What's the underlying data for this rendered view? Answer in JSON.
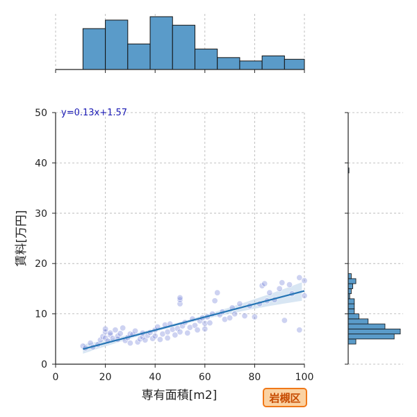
{
  "chart_data": {
    "type": "scatter",
    "xlabel": "専有面積[m2]",
    "ylabel": "賃料[万円]",
    "xlim": [
      0,
      100
    ],
    "ylim": [
      0,
      50
    ],
    "x_ticks": [
      "0",
      "20",
      "40",
      "60",
      "80",
      "100"
    ],
    "y_ticks": [
      "0",
      "10",
      "20",
      "30",
      "40",
      "50"
    ],
    "grid": true,
    "regression": {
      "equation": "y=0.13x+1.57",
      "slope": 0.13,
      "intercept": 1.57,
      "x_range": [
        11,
        100
      ]
    },
    "badge": "岩槻区",
    "colors": {
      "hist": "#5a9bc9",
      "line": "#2474b4",
      "points": "#6f7fd6",
      "equation": "#1a1ab4",
      "badge_bg": "#fbd2a2",
      "badge_border": "#f07818",
      "badge_text": "#c64a00"
    },
    "points": [
      [
        11,
        3.6
      ],
      [
        12,
        3.2
      ],
      [
        14,
        4.2
      ],
      [
        15,
        3.4
      ],
      [
        17,
        3.9
      ],
      [
        18,
        4.8
      ],
      [
        19,
        5.5
      ],
      [
        20,
        5.2
      ],
      [
        20,
        6.4
      ],
      [
        20,
        7.0
      ],
      [
        21,
        4.6
      ],
      [
        22,
        5.8
      ],
      [
        22,
        6.2
      ],
      [
        23,
        5.1
      ],
      [
        24,
        6.8
      ],
      [
        25,
        4.9
      ],
      [
        25,
        5.6
      ],
      [
        26,
        6.1
      ],
      [
        27,
        7.2
      ],
      [
        28,
        4.7
      ],
      [
        29,
        5.3
      ],
      [
        30,
        6.0
      ],
      [
        30,
        4.2
      ],
      [
        31,
        5.9
      ],
      [
        32,
        6.6
      ],
      [
        33,
        4.4
      ],
      [
        34,
        5.0
      ],
      [
        35,
        5.4
      ],
      [
        35,
        6.2
      ],
      [
        36,
        4.8
      ],
      [
        37,
        5.7
      ],
      [
        38,
        6.3
      ],
      [
        39,
        5.1
      ],
      [
        40,
        5.6
      ],
      [
        40,
        6.8
      ],
      [
        41,
        7.4
      ],
      [
        42,
        4.9
      ],
      [
        43,
        6.0
      ],
      [
        44,
        7.8
      ],
      [
        45,
        6.4
      ],
      [
        45,
        5.2
      ],
      [
        46,
        8.0
      ],
      [
        47,
        6.9
      ],
      [
        48,
        5.8
      ],
      [
        49,
        7.1
      ],
      [
        50,
        12.0
      ],
      [
        50,
        12.8
      ],
      [
        50,
        13.2
      ],
      [
        50,
        6.4
      ],
      [
        51,
        7.6
      ],
      [
        52,
        8.3
      ],
      [
        53,
        6.2
      ],
      [
        54,
        7.3
      ],
      [
        55,
        9.0
      ],
      [
        56,
        7.7
      ],
      [
        57,
        6.8
      ],
      [
        58,
        8.6
      ],
      [
        59,
        9.2
      ],
      [
        60,
        8.1
      ],
      [
        60,
        7.0
      ],
      [
        61,
        9.4
      ],
      [
        62,
        8.2
      ],
      [
        63,
        10.0
      ],
      [
        64,
        12.6
      ],
      [
        65,
        14.2
      ],
      [
        66,
        9.8
      ],
      [
        67,
        10.4
      ],
      [
        68,
        8.9
      ],
      [
        70,
        9.2
      ],
      [
        71,
        11.2
      ],
      [
        72,
        10.0
      ],
      [
        74,
        12.0
      ],
      [
        76,
        9.6
      ],
      [
        78,
        11.6
      ],
      [
        80,
        9.4
      ],
      [
        82,
        12.0
      ],
      [
        83,
        15.6
      ],
      [
        84,
        16.0
      ],
      [
        85,
        12.6
      ],
      [
        86,
        14.2
      ],
      [
        88,
        12.8
      ],
      [
        90,
        15.0
      ],
      [
        91,
        16.2
      ],
      [
        92,
        8.7
      ],
      [
        94,
        15.8
      ],
      [
        95,
        14.0
      ],
      [
        98,
        6.8
      ],
      [
        98,
        17.2
      ],
      [
        100,
        16.6
      ],
      [
        100,
        13.6
      ]
    ],
    "top_histogram": {
      "bins": [
        [
          0,
          11
        ],
        [
          11,
          20
        ],
        [
          20,
          29
        ],
        [
          29,
          38
        ],
        [
          38,
          47
        ],
        [
          47,
          56
        ],
        [
          56,
          65
        ],
        [
          65,
          74
        ],
        [
          74,
          83
        ],
        [
          83,
          92
        ],
        [
          92,
          100
        ]
      ],
      "counts": [
        0,
        24,
        29,
        15,
        31,
        26,
        12,
        7,
        5,
        8,
        6
      ]
    },
    "right_histogram": {
      "bins": [
        [
          2,
          3
        ],
        [
          3,
          4
        ],
        [
          4,
          5
        ],
        [
          5,
          6
        ],
        [
          6,
          7
        ],
        [
          7,
          8
        ],
        [
          8,
          9
        ],
        [
          9,
          10
        ],
        [
          10,
          11
        ],
        [
          11,
          12
        ],
        [
          12,
          13
        ],
        [
          13,
          14
        ],
        [
          14,
          15
        ],
        [
          15,
          16
        ],
        [
          16,
          17
        ],
        [
          17,
          18
        ],
        [
          38,
          39
        ]
      ],
      "counts": [
        0,
        0,
        5,
        30,
        34,
        24,
        13,
        7,
        4,
        4,
        4,
        1,
        2,
        3,
        5,
        2,
        0.5
      ]
    }
  }
}
